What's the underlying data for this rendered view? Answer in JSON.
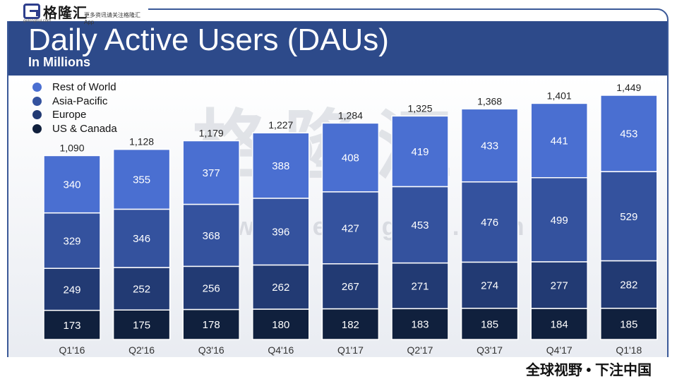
{
  "brand": {
    "name": "格隆汇",
    "url": "gelonghui.com",
    "tagline": "更多资讯请关注格隆汇App",
    "watermark": "格隆汇",
    "watermark_url": "www.gelonghui.com",
    "slogan": "全球视野 • 下注中国"
  },
  "colors": {
    "header": "#2d4a8a",
    "rest_of_world": "#4a6fd1",
    "asia_pacific": "#34529e",
    "europe": "#223a73",
    "us_canada": "#10203d"
  },
  "chart_data": {
    "type": "bar",
    "stacked": true,
    "title": "Daily Active Users (DAUs)",
    "subtitle": "In Millions",
    "categories": [
      "Q1'16",
      "Q2'16",
      "Q3'16",
      "Q4'16",
      "Q1'17",
      "Q2'17",
      "Q3'17",
      "Q4'17",
      "Q1'18"
    ],
    "series": [
      {
        "name": "US & Canada",
        "color": "#10203d",
        "values": [
          173,
          175,
          178,
          180,
          182,
          183,
          185,
          184,
          185
        ]
      },
      {
        "name": "Europe",
        "color": "#223a73",
        "values": [
          249,
          252,
          256,
          262,
          267,
          271,
          274,
          277,
          282
        ]
      },
      {
        "name": "Asia-Pacific",
        "color": "#34529e",
        "values": [
          329,
          346,
          368,
          396,
          427,
          453,
          476,
          499,
          529
        ]
      },
      {
        "name": "Rest of World",
        "color": "#4a6fd1",
        "values": [
          340,
          355,
          377,
          388,
          408,
          419,
          433,
          441,
          453
        ]
      }
    ],
    "totals": [
      "1,090",
      "1,128",
      "1,179",
      "1,227",
      "1,284",
      "1,325",
      "1,368",
      "1,401",
      "1,449"
    ],
    "legend": [
      "Rest of World",
      "Asia-Pacific",
      "Europe",
      "US & Canada"
    ],
    "legend_position": "top-left",
    "ylim": [
      0,
      1449
    ],
    "xlabel": "",
    "ylabel": ""
  }
}
